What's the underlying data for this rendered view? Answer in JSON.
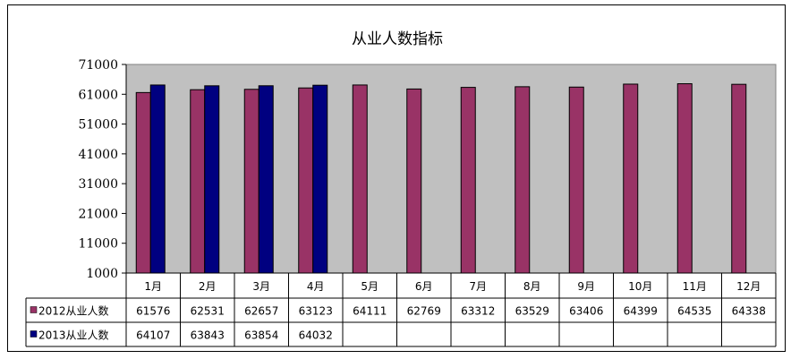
{
  "chart_data": {
    "type": "bar",
    "title": "从业人数指标",
    "categories": [
      "1月",
      "2月",
      "3月",
      "4月",
      "5月",
      "6月",
      "7月",
      "8月",
      "9月",
      "10月",
      "11月",
      "12月"
    ],
    "series": [
      {
        "name": "2012从业人数",
        "color": "#993366",
        "values": [
          61576,
          62531,
          62657,
          63123,
          64111,
          62769,
          63312,
          63529,
          63406,
          64399,
          64535,
          64338
        ]
      },
      {
        "name": "2013从业人数",
        "color": "#000080",
        "values": [
          64107,
          63843,
          63854,
          64032,
          null,
          null,
          null,
          null,
          null,
          null,
          null,
          null
        ]
      }
    ],
    "ylim": [
      1000,
      71000
    ],
    "yticks": [
      "71000",
      "61000",
      "51000",
      "41000",
      "31000",
      "21000",
      "11000",
      "1000"
    ],
    "plot_background": "#c0c0c0",
    "data_table": true
  }
}
